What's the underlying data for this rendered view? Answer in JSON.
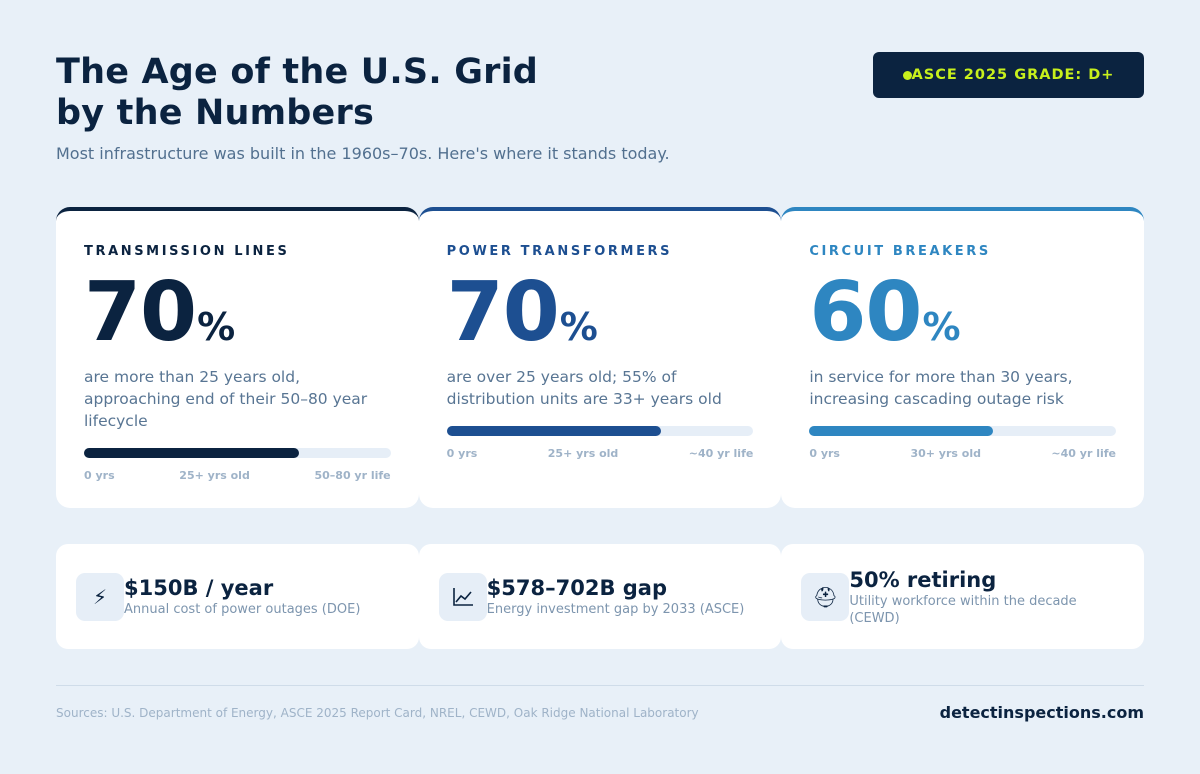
{
  "header": {
    "title_line1": "The Age of the U.S. Grid",
    "title_line2": "by the Numbers",
    "subtitle": "Most infrastructure was built in the 1960s–70s. Here's where it stands today."
  },
  "badge": {
    "label": "ASCE 2025 GRADE: D+",
    "color": "#c8f01c"
  },
  "cards": [
    {
      "label": "TRANSMISSION LINES",
      "value": "70",
      "unit": "%",
      "description": "are more than 25 years old, approaching end of their 50–80 year lifecycle",
      "progress": 0.7,
      "accent": "#0b2340",
      "bar_labels": [
        "0 yrs",
        "25+ yrs old",
        "50–80 yr life"
      ]
    },
    {
      "label": "POWER TRANSFORMERS",
      "value": "70",
      "unit": "%",
      "description": "are over 25 years old; 55% of distribution units are 33+ years old",
      "progress": 0.7,
      "accent": "#1d4f91",
      "bar_labels": [
        "0 yrs",
        "25+ yrs old",
        "~40 yr life"
      ]
    },
    {
      "label": "CIRCUIT BREAKERS",
      "value": "60",
      "unit": "%",
      "description": "in service for more than 30 years, increasing cascading outage risk",
      "progress": 0.6,
      "accent": "#2e86c1",
      "bar_labels": [
        "0 yrs",
        "30+ yrs old",
        "~40 yr life"
      ]
    }
  ],
  "stats": [
    {
      "icon": "lightning-icon",
      "glyph": "⚡",
      "value": "$150B / year",
      "caption": "Annual cost of power outages (DOE)"
    },
    {
      "icon": "chart-icon",
      "glyph": "📈",
      "value": "$578–702B gap",
      "caption": "Energy investment gap by 2033 (ASCE)"
    },
    {
      "icon": "worker-helmet-icon",
      "glyph": "⛑",
      "value": "50% retiring",
      "caption": "Utility workforce within the decade (CEWD)"
    }
  ],
  "footer": {
    "sources": "Sources: U.S. Department of Energy, ASCE 2025 Report Card, NREL, CEWD, Oak Ridge National Laboratory",
    "site": "detectinspections.com"
  }
}
